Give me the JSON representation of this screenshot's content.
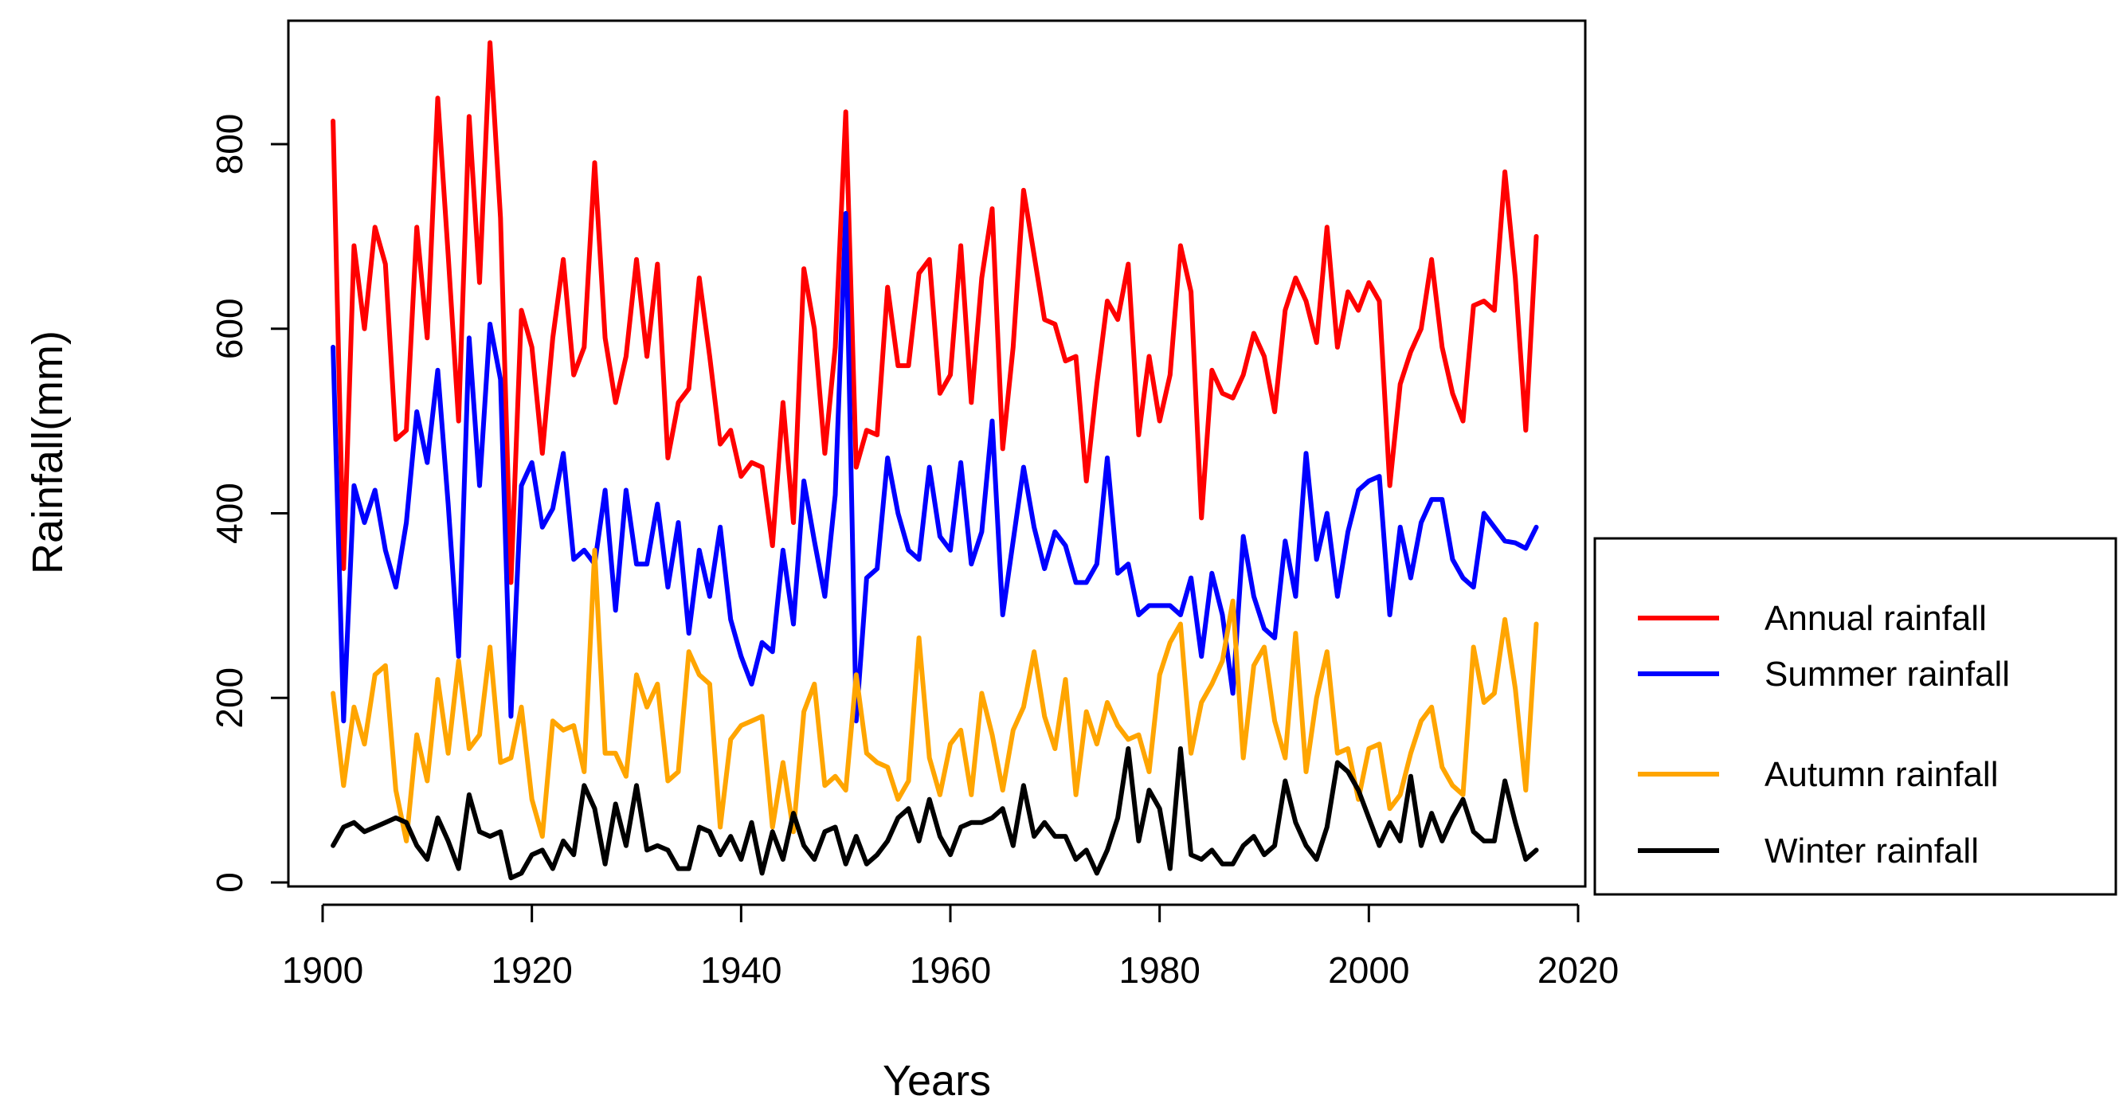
{
  "chart_data": {
    "type": "line",
    "title": "",
    "xlabel": "Years",
    "ylabel": "Rainfall(mm)",
    "xlim": [
      1900,
      2020
    ],
    "ylim": [
      0,
      900
    ],
    "xticks": [
      1900,
      1920,
      1940,
      1960,
      1980,
      2000,
      2020
    ],
    "yticks": [
      0,
      200,
      400,
      600,
      800
    ],
    "legend_position": "right",
    "x_start": 1901,
    "x_end": 2016,
    "series": [
      {
        "name": "Annual rainfall",
        "color": "#ff0000",
        "values": [
          825,
          340,
          690,
          600,
          710,
          670,
          480,
          490,
          710,
          590,
          850,
          680,
          500,
          830,
          650,
          910,
          720,
          325,
          620,
          580,
          465,
          590,
          675,
          550,
          580,
          780,
          590,
          520,
          570,
          675,
          570,
          670,
          460,
          520,
          535,
          655,
          570,
          475,
          490,
          440,
          455,
          450,
          365,
          520,
          390,
          665,
          600,
          465,
          580,
          835,
          450,
          490,
          485,
          645,
          560,
          560,
          660,
          675,
          530,
          550,
          690,
          520,
          655,
          730,
          470,
          580,
          750,
          680,
          610,
          605,
          565,
          570,
          435,
          540,
          630,
          610,
          670,
          485,
          570,
          500,
          550,
          690,
          640,
          395,
          555,
          530,
          525,
          550,
          595,
          570,
          510,
          620,
          655,
          630,
          585,
          710,
          580,
          640,
          620,
          650,
          630,
          430,
          540,
          575,
          600,
          675,
          580,
          530,
          500,
          625,
          630,
          620,
          770,
          655,
          490,
          700
        ]
      },
      {
        "name": "Summer rainfall",
        "color": "#0000ff",
        "values": [
          580,
          175,
          430,
          390,
          425,
          360,
          320,
          390,
          510,
          455,
          555,
          410,
          245,
          590,
          430,
          605,
          545,
          180,
          430,
          455,
          385,
          405,
          465,
          350,
          360,
          345,
          425,
          295,
          425,
          345,
          345,
          410,
          320,
          390,
          270,
          360,
          310,
          385,
          285,
          245,
          215,
          260,
          250,
          360,
          280,
          435,
          370,
          310,
          420,
          725,
          175,
          330,
          340,
          460,
          400,
          360,
          350,
          450,
          375,
          360,
          455,
          345,
          380,
          500,
          290,
          370,
          450,
          385,
          340,
          380,
          365,
          325,
          325,
          345,
          460,
          335,
          345,
          290,
          300,
          300,
          300,
          290,
          330,
          245,
          335,
          290,
          205,
          375,
          310,
          275,
          265,
          370,
          310,
          465,
          350,
          400,
          310,
          380,
          425,
          435,
          440,
          290,
          385,
          330,
          390,
          415,
          415,
          350,
          330,
          320,
          400,
          385,
          370,
          368,
          362,
          385
        ]
      },
      {
        "name": "Autumn rainfall",
        "color": "#ffa500",
        "values": [
          205,
          105,
          190,
          150,
          225,
          235,
          100,
          45,
          160,
          110,
          220,
          140,
          240,
          145,
          160,
          255,
          130,
          135,
          190,
          90,
          50,
          175,
          165,
          170,
          120,
          360,
          140,
          140,
          115,
          225,
          190,
          215,
          110,
          120,
          250,
          225,
          215,
          60,
          155,
          170,
          175,
          180,
          60,
          130,
          55,
          185,
          215,
          105,
          115,
          100,
          225,
          140,
          130,
          125,
          90,
          110,
          265,
          135,
          95,
          150,
          165,
          95,
          205,
          160,
          100,
          165,
          190,
          250,
          180,
          145,
          220,
          95,
          185,
          150,
          195,
          170,
          155,
          160,
          120,
          225,
          260,
          280,
          140,
          195,
          215,
          240,
          305,
          135,
          235,
          255,
          175,
          135,
          270,
          120,
          200,
          250,
          140,
          145,
          90,
          145,
          150,
          80,
          95,
          140,
          175,
          190,
          125,
          105,
          95,
          255,
          195,
          205,
          285,
          210,
          100,
          280
        ]
      },
      {
        "name": "Winter rainfall",
        "color": "#000000",
        "values": [
          40,
          60,
          65,
          55,
          60,
          65,
          70,
          65,
          40,
          25,
          70,
          45,
          15,
          95,
          55,
          50,
          55,
          5,
          10,
          30,
          35,
          15,
          45,
          30,
          105,
          80,
          20,
          85,
          40,
          105,
          35,
          40,
          35,
          15,
          15,
          60,
          55,
          30,
          50,
          25,
          65,
          10,
          55,
          25,
          75,
          40,
          25,
          55,
          60,
          20,
          50,
          20,
          30,
          45,
          70,
          80,
          45,
          90,
          50,
          30,
          60,
          65,
          65,
          70,
          80,
          40,
          105,
          50,
          65,
          50,
          50,
          25,
          35,
          10,
          35,
          70,
          145,
          45,
          100,
          80,
          15,
          145,
          30,
          25,
          35,
          20,
          20,
          40,
          50,
          30,
          40,
          110,
          65,
          40,
          25,
          60,
          130,
          120,
          100,
          70,
          40,
          65,
          45,
          115,
          40,
          75,
          45,
          70,
          90,
          55,
          45,
          45,
          110,
          65,
          25,
          35
        ]
      }
    ]
  }
}
